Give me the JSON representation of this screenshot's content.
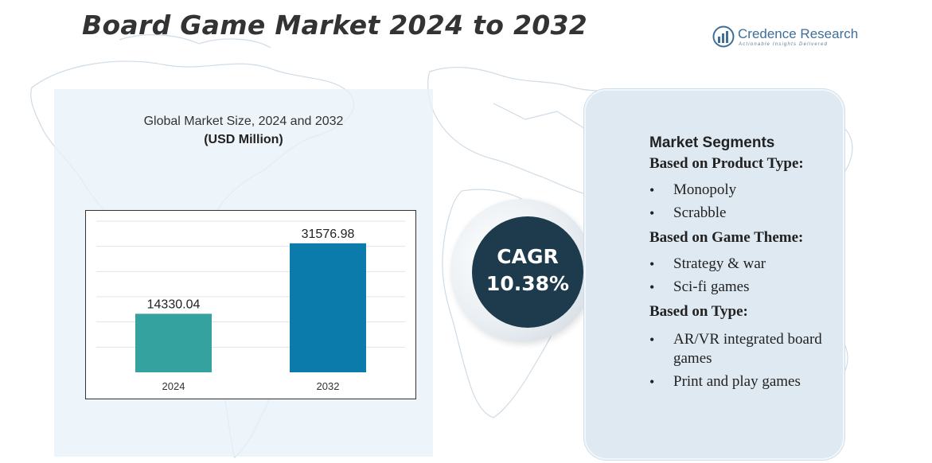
{
  "title": "Board Game Market 2024 to 2032",
  "logo": {
    "name": "Credence Research",
    "tagline": "Actionable Insights Delivered"
  },
  "chart_data": {
    "type": "bar",
    "title": "Global Market Size,  2024 and 2032",
    "subtitle": "(USD Million)",
    "categories": [
      "2024",
      "2032"
    ],
    "values": [
      14330.04,
      31576.98
    ],
    "value_labels": [
      "14330.04",
      "31576.98"
    ],
    "colors": [
      "#34a39f",
      "#0b7bab"
    ],
    "ylim": [
      0,
      37000
    ],
    "grid": true,
    "legend": "none"
  },
  "cagr": {
    "label": "CAGR",
    "value": "10.38%"
  },
  "segments": {
    "heading": "Market Segments",
    "groups": [
      {
        "title": "Based on Product Type:",
        "items": [
          "Monopoly",
          "Scrabble"
        ]
      },
      {
        "title": "Based on Game Theme:",
        "items": [
          "Strategy & war",
          "Sci-fi games"
        ]
      },
      {
        "title": "Based on Type:",
        "items": [
          "AR/VR integrated board games",
          "Print and play games"
        ]
      }
    ]
  },
  "colors": {
    "title_text": "#333333",
    "cagr_circle": "#1d3b4c",
    "panel_bg": "#dfe9f1",
    "logo_blue": "#3f6f99"
  }
}
